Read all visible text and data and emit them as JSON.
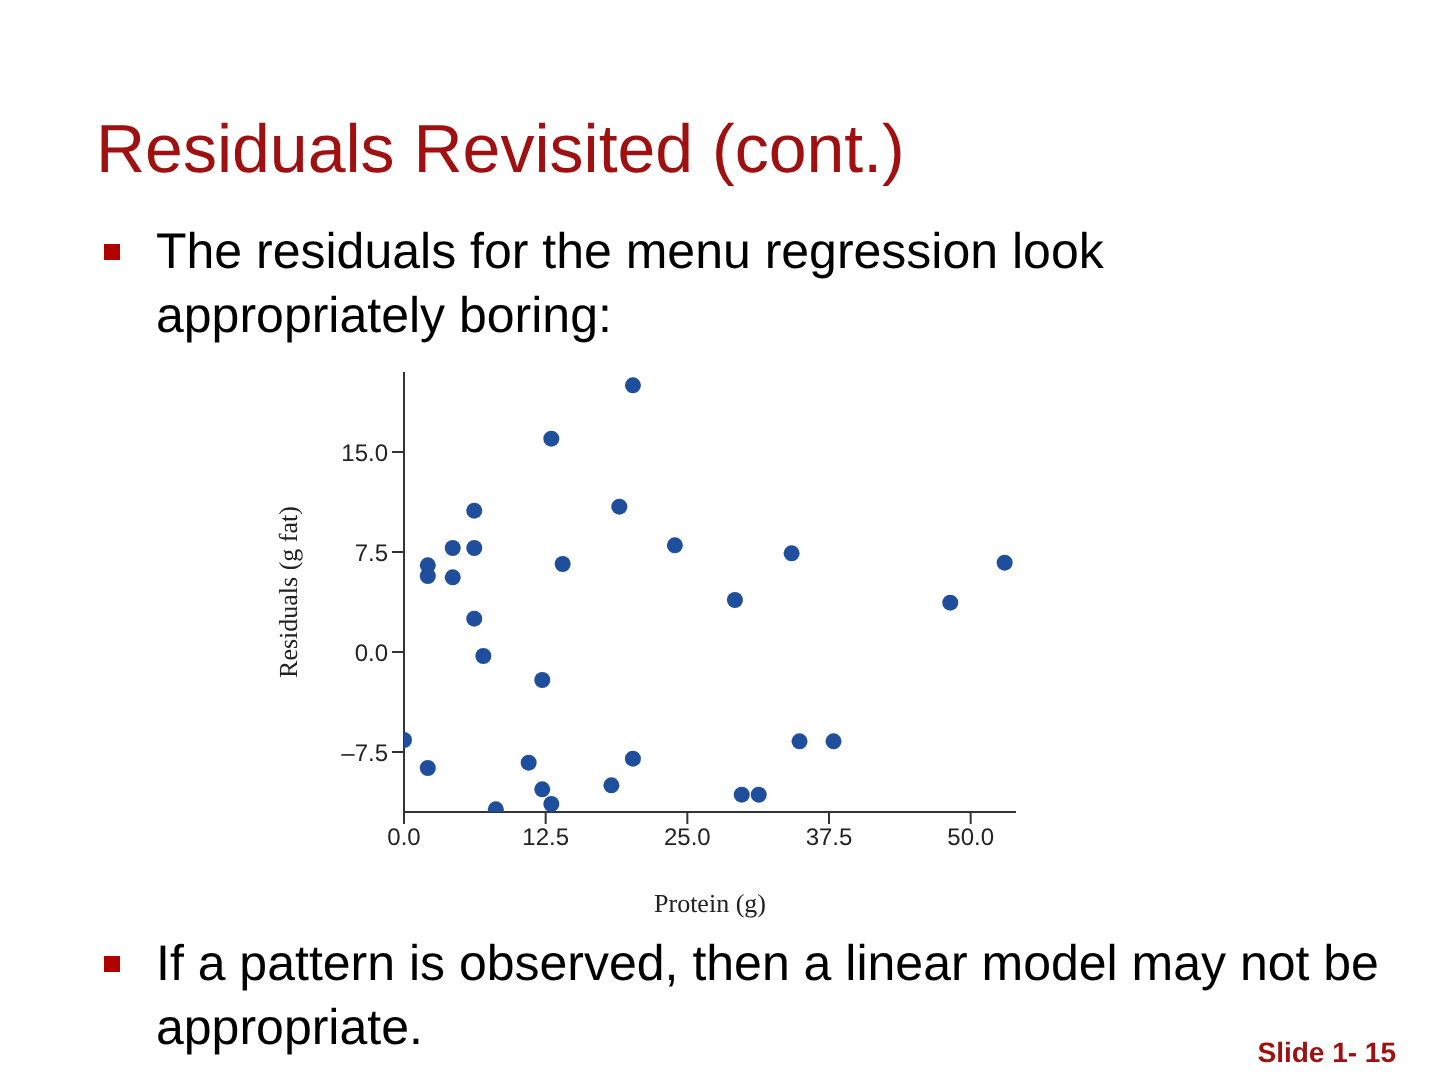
{
  "chart_data": {
    "type": "scatter",
    "title": "Residuals Revisited (cont.)",
    "xlabel": "Protein (g)",
    "ylabel": "Residuals (g fat)",
    "annotations": [
      "The residuals for the menu regression look appropriately boring:",
      "If a pattern is observed, then a linear model may not be appropriate.",
      "Slide 1- 15"
    ],
    "x": [
      0,
      2.1,
      2.1,
      2.1,
      4.3,
      4.3,
      6.2,
      6.2,
      6.2,
      7.0,
      8.1,
      11.0,
      12.2,
      12.2,
      13.0,
      13.0,
      14.0,
      18.3,
      19.0,
      20.2,
      20.2,
      23.9,
      29.2,
      29.8,
      31.3,
      34.2,
      34.9,
      37.9,
      48.2,
      53.0
    ],
    "series": [
      {
        "color": "#1f4e9c",
        "values": [
          -6.6,
          -8.7,
          6.5,
          5.7,
          7.8,
          5.6,
          10.6,
          7.8,
          2.5,
          -0.3,
          -11.8,
          -8.3,
          -2.1,
          -10.3,
          16.0,
          -11.4,
          6.6,
          -10.0,
          10.9,
          20.0,
          -8.0,
          8.0,
          3.9,
          -10.7,
          -10.7,
          7.4,
          -6.7,
          -6.7,
          3.7,
          6.7
        ]
      }
    ],
    "xlim": [
      0,
      54
    ],
    "xticks": [
      {
        "value": 0,
        "label": "0.0"
      },
      {
        "value": 12.5,
        "label": "12.5"
      },
      {
        "value": 25,
        "label": "25.0"
      },
      {
        "value": 37.5,
        "label": "37.5"
      },
      {
        "value": 50,
        "label": "50.0"
      }
    ],
    "ylim": [
      -12,
      21
    ],
    "yticks": [
      {
        "value": -7.5,
        "label": "–7.5"
      },
      {
        "value": 0,
        "label": "0.0"
      },
      {
        "value": 7.5,
        "label": "7.5"
      },
      {
        "value": 15,
        "label": "15.0"
      }
    ],
    "grid": false,
    "legend": false,
    "marker": "circle"
  }
}
